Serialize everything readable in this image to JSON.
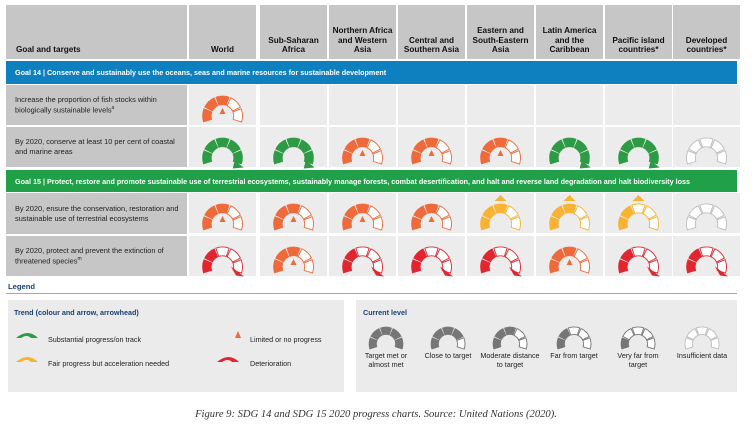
{
  "header": {
    "goal_col": "Goal and targets",
    "regions": [
      "World",
      "Sub-Saharan Africa",
      "Northern Africa and Western Asia",
      "Central and Southern Asia",
      "Eastern and South-Eastern Asia",
      "Latin America and the Caribbean",
      "Pacific island countries*",
      "Developed countries*"
    ]
  },
  "goals": [
    {
      "label": "Goal 14 | Conserve and sustainably use the oceans, seas and marine resources for sustainable development",
      "band_color": "#0e7fbf",
      "targets": [
        {
          "text": "Increase the proportion of fish stocks within biologically sustainable levels",
          "note": "a",
          "gauges": [
            {
              "fill": 3,
              "trend": "limited"
            },
            null,
            null,
            null,
            null,
            null,
            null,
            null
          ]
        },
        {
          "text": "By 2020, conserve at least 10 per cent of coastal and marine areas",
          "note": "",
          "gauges": [
            {
              "fill": 5,
              "trend": "substantial"
            },
            {
              "fill": 5,
              "trend": "substantial"
            },
            {
              "fill": 3,
              "trend": "limited"
            },
            {
              "fill": 3,
              "trend": "limited"
            },
            {
              "fill": 3,
              "trend": "limited"
            },
            {
              "fill": 5,
              "trend": "substantial"
            },
            {
              "fill": 5,
              "trend": "substantial"
            },
            {
              "fill": 0,
              "trend": "insufficient"
            }
          ]
        }
      ]
    },
    {
      "label": "Goal 15 | Protect, restore and promote sustainable use of terrestrial ecosystems, sustainably manage forests, combat desertification, and halt and reverse land degradation and halt biodiversity loss",
      "band_color": "#1fa049",
      "targets": [
        {
          "text": "By 2020, ensure the conservation, restoration and sustainable use of terrestrial ecosystems",
          "note": "",
          "gauges": [
            {
              "fill": 3,
              "trend": "limited"
            },
            {
              "fill": 3,
              "trend": "limited"
            },
            {
              "fill": 3,
              "trend": "limited"
            },
            {
              "fill": 3,
              "trend": "limited"
            },
            {
              "fill": 3,
              "trend": "fair"
            },
            {
              "fill": 3,
              "trend": "fair"
            },
            {
              "fill": 2,
              "trend": "fair"
            },
            {
              "fill": 0,
              "trend": "insufficient"
            }
          ]
        },
        {
          "text": "By 2020, protect and prevent the extinction of threatened species",
          "note": "m",
          "gauges": [
            {
              "fill": 2,
              "trend": "deterioration"
            },
            {
              "fill": 3,
              "trend": "limited"
            },
            {
              "fill": 2,
              "trend": "deterioration"
            },
            {
              "fill": 2,
              "trend": "deterioration"
            },
            {
              "fill": 2,
              "trend": "deterioration"
            },
            {
              "fill": 3,
              "trend": "limited"
            },
            {
              "fill": 2,
              "trend": "deterioration"
            },
            {
              "fill": 2,
              "trend": "deterioration"
            }
          ]
        }
      ]
    }
  ],
  "legend": {
    "title": "Legend",
    "trend_title": "Trend (colour and arrow, arrowhead)",
    "trend_items": [
      {
        "key": "substantial",
        "label": "Substantial progress/on track",
        "color": "#2e9b44"
      },
      {
        "key": "fair",
        "label": "Fair progress but acceleration needed",
        "color": "#f8b334"
      },
      {
        "key": "limited",
        "label": "Limited or no progress",
        "color": "#ee6a3a"
      },
      {
        "key": "deterioration",
        "label": "Deterioration",
        "color": "#e22630"
      }
    ],
    "level_title": "Current level",
    "levels": [
      {
        "fill": 5,
        "label": "Target met or almost met"
      },
      {
        "fill": 4,
        "label": "Close to target"
      },
      {
        "fill": 3,
        "label": "Moderate distance to target"
      },
      {
        "fill": 2,
        "label": "Far from target"
      },
      {
        "fill": 1,
        "label": "Very far from target"
      },
      {
        "fill": 0,
        "label": "Insufficient data"
      }
    ]
  },
  "colors": {
    "substantial": "#2e9b44",
    "fair": "#f8b334",
    "limited": "#ee6a3a",
    "deterioration": "#e22630",
    "level_gray": "#767676",
    "empty_fill": "#ffffff",
    "empty_stroke": "#bdbdbd"
  },
  "caption": "Figure 9: SDG 14 and SDG 15 2020 progress charts. Source: United Nations (2020)."
}
